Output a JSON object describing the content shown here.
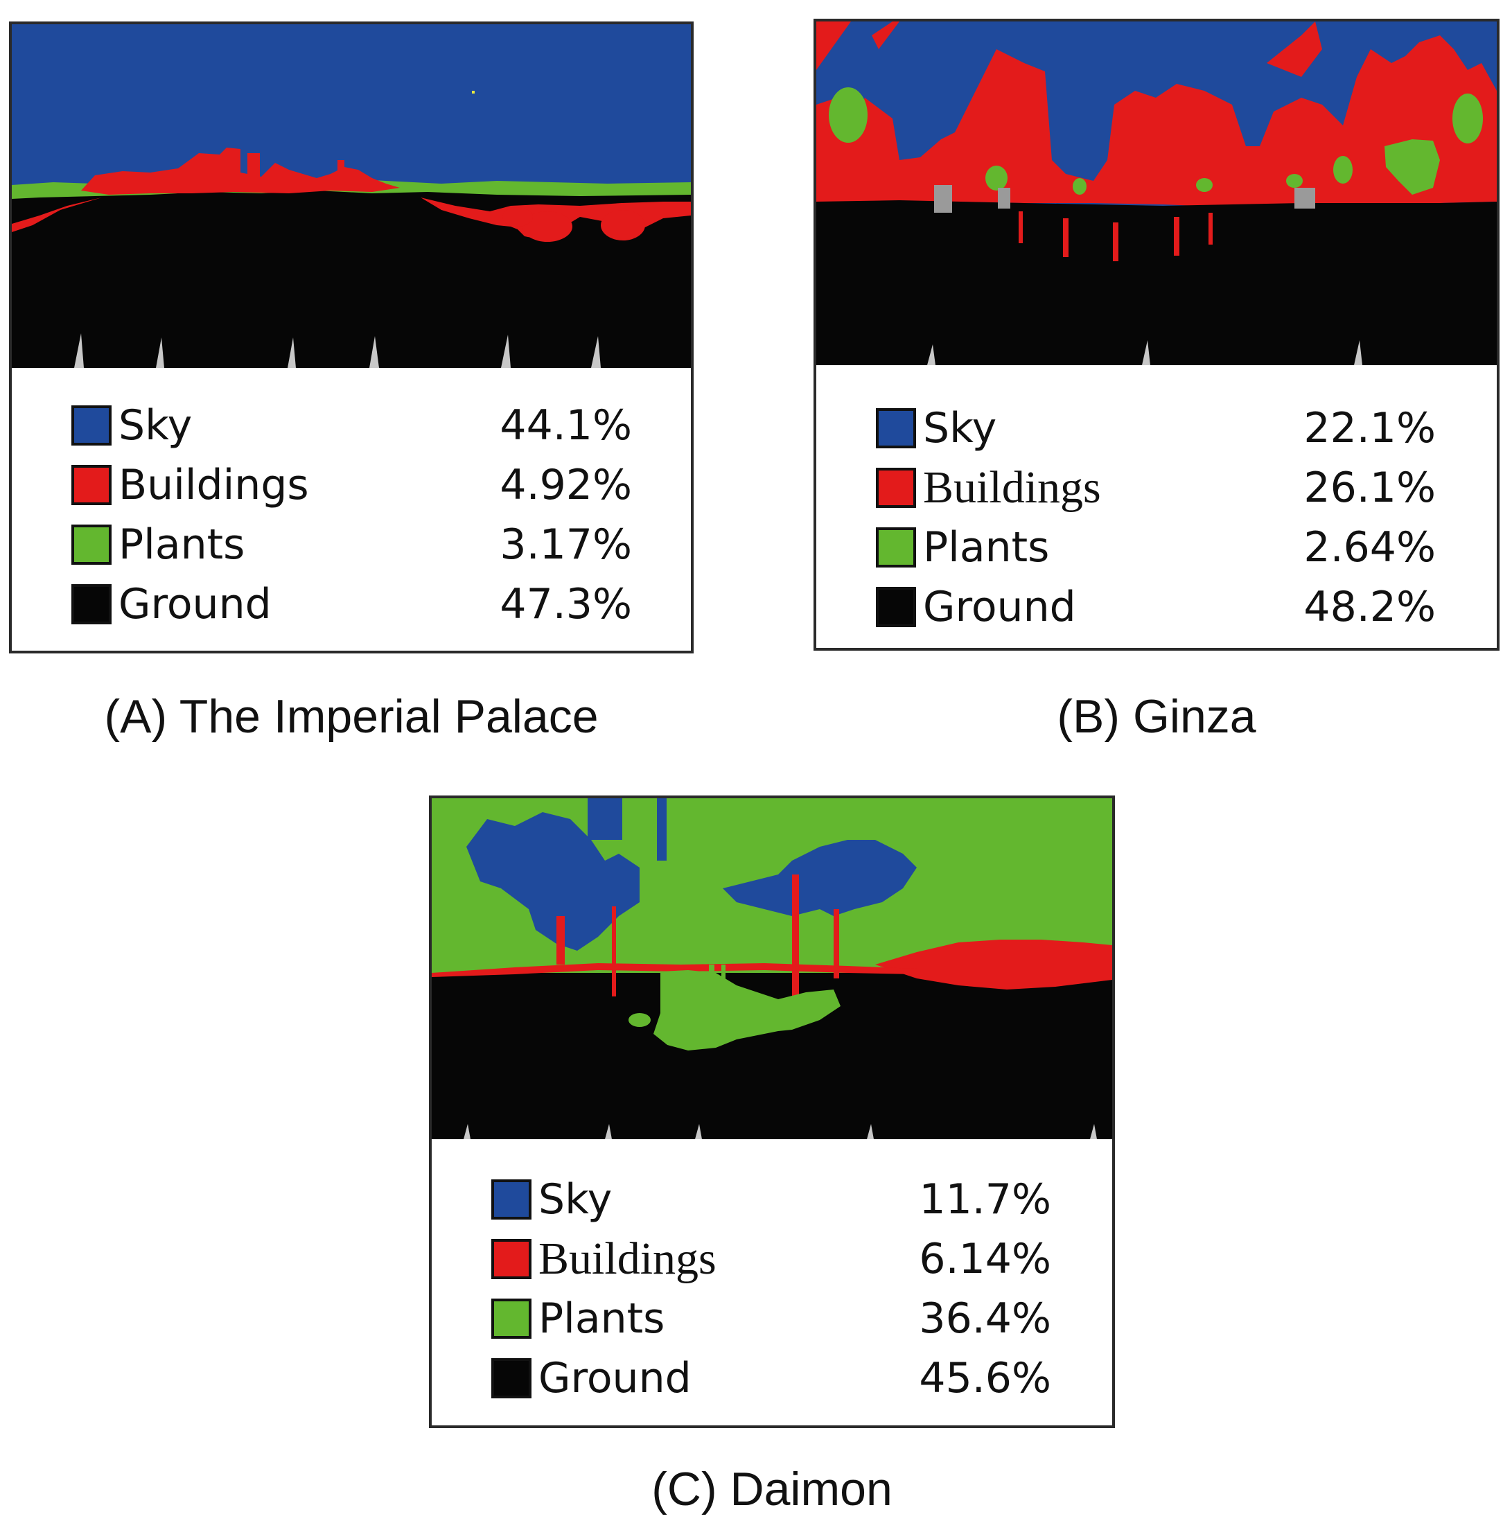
{
  "colors": {
    "sky": "#1f4a9c",
    "buildings": "#e31b1b",
    "plants": "#63b72f",
    "ground": "#060606",
    "frame": "#2a2a2a"
  },
  "panels": [
    {
      "id": "A",
      "caption": "(A) The Imperial Palace",
      "legend": [
        {
          "label": "Sky",
          "value": "44.1%",
          "color_key": "sky"
        },
        {
          "label": "Buildings",
          "value": "4.92%",
          "color_key": "buildings"
        },
        {
          "label": "Plants",
          "value": "3.17%",
          "color_key": "plants"
        },
        {
          "label": "Ground",
          "value": "47.3%",
          "color_key": "ground"
        }
      ]
    },
    {
      "id": "B",
      "caption": "(B) Ginza",
      "legend": [
        {
          "label": "Sky",
          "value": "22.1%",
          "color_key": "sky"
        },
        {
          "label": "Buildings",
          "value": "26.1%",
          "color_key": "buildings"
        },
        {
          "label": "Plants",
          "value": "2.64%",
          "color_key": "plants"
        },
        {
          "label": "Ground",
          "value": "48.2%",
          "color_key": "ground"
        }
      ]
    },
    {
      "id": "C",
      "caption": "(C) Daimon",
      "legend": [
        {
          "label": "Sky",
          "value": "11.7%",
          "color_key": "sky"
        },
        {
          "label": "Buildings",
          "value": "6.14%",
          "color_key": "buildings"
        },
        {
          "label": "Plants",
          "value": "36.4%",
          "color_key": "plants"
        },
        {
          "label": "Ground",
          "value": "45.6%",
          "color_key": "ground"
        }
      ]
    }
  ]
}
